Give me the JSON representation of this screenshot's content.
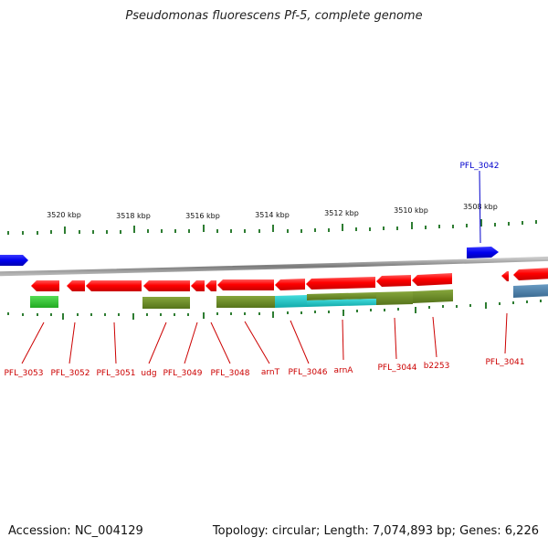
{
  "title": "Pseudomonas fluorescens Pf-5, complete genome",
  "footer": {
    "accession": "Accession: NC_004129",
    "topology": "Topology: circular; Length: 7,074,893 bp; Genes: 6,226"
  },
  "kbp_labels": [
    "3520 kbp",
    "3518 kbp",
    "3516 kbp",
    "3514 kbp",
    "3512 kbp",
    "3510 kbp",
    "3508 kbp"
  ],
  "top_gene_labels": [
    "PFL_3042"
  ],
  "bottom_gene_labels": [
    "PFL_3053",
    "PFL_3052",
    "PFL_3051",
    "udg",
    "PFL_3049",
    "PFL_3048",
    "arnT",
    "PFL_3046",
    "arnA",
    "PFL_3044",
    "b2253",
    "PFL_3041"
  ],
  "colors": {
    "forward_gene": "#0000ee",
    "reverse_gene": "#ff0000",
    "backbone": "#8a8a8a",
    "tick": "#2e7d32",
    "feature_green": "#33cc33",
    "feature_olive": "#6b8e23",
    "feature_cyan": "#22cccc",
    "feature_steel": "#4a7ea8",
    "label_red": "#cc0000",
    "label_blue": "#0000cc"
  }
}
